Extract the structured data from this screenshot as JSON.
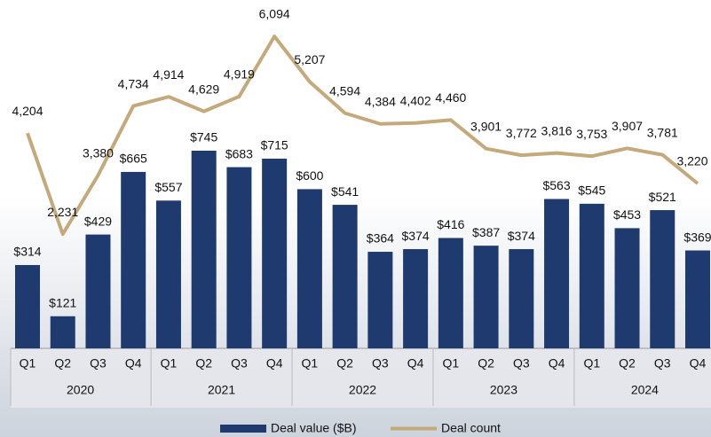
{
  "chart_data": {
    "type": "combo",
    "categories": [
      "Q1",
      "Q2",
      "Q3",
      "Q4",
      "Q1",
      "Q2",
      "Q3",
      "Q4",
      "Q1",
      "Q2",
      "Q3",
      "Q4",
      "Q1",
      "Q2",
      "Q3",
      "Q4",
      "Q1",
      "Q2",
      "Q3",
      "Q4"
    ],
    "groups": [
      "2020",
      "2021",
      "2022",
      "2023",
      "2024"
    ],
    "series": [
      {
        "name": "Deal value ($B)",
        "type": "bar",
        "color": "#1f3a6e",
        "values": [
          314,
          121,
          429,
          665,
          557,
          745,
          683,
          715,
          600,
          541,
          364,
          374,
          416,
          387,
          374,
          563,
          545,
          453,
          521,
          369
        ],
        "value_labels": [
          "$314",
          "$121",
          "$429",
          "$665",
          "$557",
          "$745",
          "$683",
          "$715",
          "$600",
          "$541",
          "$364",
          "$374",
          "$416",
          "$387",
          "$374",
          "$563",
          "$545",
          "$453",
          "$521",
          "$369"
        ]
      },
      {
        "name": "Deal count",
        "type": "line",
        "color": "#c4a97a",
        "values": [
          4204,
          2231,
          3380,
          4734,
          4914,
          4629,
          4919,
          6094,
          5207,
          4594,
          4384,
          4402,
          4460,
          3901,
          3772,
          3816,
          3753,
          3907,
          3781,
          3220
        ],
        "value_labels": [
          "4,204",
          "2,231",
          "3,380",
          "4,734",
          "4,914",
          "4,629",
          "4,919",
          "6,094",
          "5,207",
          "4,594",
          "4,384",
          "4,402",
          "4,460",
          "3,901",
          "3,772",
          "3,816",
          "3,753",
          "3,907",
          "3,781",
          "3,220"
        ]
      }
    ],
    "legend": "bottom"
  }
}
